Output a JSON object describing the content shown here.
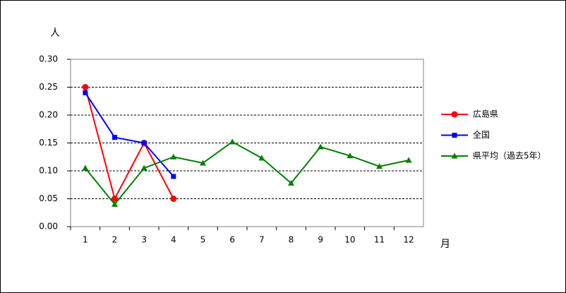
{
  "chart_data": {
    "type": "line",
    "y_label": "人",
    "x_label": "月",
    "categories": [
      "1",
      "2",
      "3",
      "4",
      "5",
      "6",
      "7",
      "8",
      "9",
      "10",
      "11",
      "12"
    ],
    "series": [
      {
        "name": "広島県",
        "color": "#ff0000",
        "marker": "circle",
        "values": [
          0.25,
          0.05,
          0.15,
          0.05,
          null,
          null,
          null,
          null,
          null,
          null,
          null,
          null
        ]
      },
      {
        "name": "全国",
        "color": "#0000ff",
        "marker": "square",
        "values": [
          0.24,
          0.16,
          0.15,
          0.09,
          null,
          null,
          null,
          null,
          null,
          null,
          null,
          null
        ]
      },
      {
        "name": "県平均（過去5年）",
        "color": "#008000",
        "marker": "triangle",
        "values": [
          0.105,
          0.04,
          0.105,
          0.125,
          0.114,
          0.152,
          0.123,
          0.078,
          0.143,
          0.127,
          0.108,
          0.119
        ]
      }
    ],
    "ylim": [
      0,
      0.3
    ],
    "yticks": [
      {
        "value": 0,
        "label": "0.00"
      },
      {
        "value": 0.05,
        "label": "0.05"
      },
      {
        "value": 0.1,
        "label": "0.10"
      },
      {
        "value": 0.15,
        "label": "0.15"
      },
      {
        "value": 0.2,
        "label": "0.20"
      },
      {
        "value": 0.25,
        "label": "0.25"
      },
      {
        "value": 0.3,
        "label": "0.30"
      }
    ],
    "grid": true,
    "legend": "right"
  }
}
